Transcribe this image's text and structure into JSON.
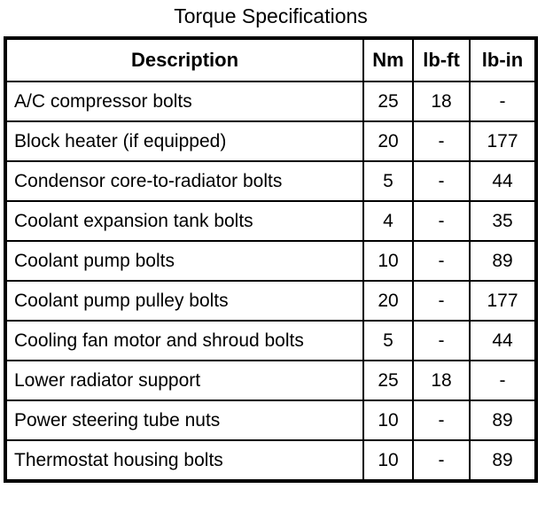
{
  "title": "Torque Specifications",
  "colors": {
    "text": "#000000",
    "background": "#ffffff",
    "border": "#000000"
  },
  "table": {
    "columns": [
      "Description",
      "Nm",
      "lb-ft",
      "lb-in"
    ],
    "rows": [
      {
        "description": "A/C compressor bolts",
        "nm": "25",
        "lb_ft": "18",
        "lb_in": "-"
      },
      {
        "description": "Block heater (if equipped)",
        "nm": "20",
        "lb_ft": "-",
        "lb_in": "177"
      },
      {
        "description": "Condensor core-to-radiator bolts",
        "nm": "5",
        "lb_ft": "-",
        "lb_in": "44"
      },
      {
        "description": "Coolant expansion tank bolts",
        "nm": "4",
        "lb_ft": "-",
        "lb_in": "35"
      },
      {
        "description": "Coolant pump bolts",
        "nm": "10",
        "lb_ft": "-",
        "lb_in": "89"
      },
      {
        "description": "Coolant pump pulley bolts",
        "nm": "20",
        "lb_ft": "-",
        "lb_in": "177"
      },
      {
        "description": "Cooling fan motor and shroud bolts",
        "nm": "5",
        "lb_ft": "-",
        "lb_in": "44"
      },
      {
        "description": "Lower radiator support",
        "nm": "25",
        "lb_ft": "18",
        "lb_in": "-"
      },
      {
        "description": "Power steering tube nuts",
        "nm": "10",
        "lb_ft": "-",
        "lb_in": "89"
      },
      {
        "description": "Thermostat housing bolts",
        "nm": "10",
        "lb_ft": "-",
        "lb_in": "89"
      }
    ]
  }
}
